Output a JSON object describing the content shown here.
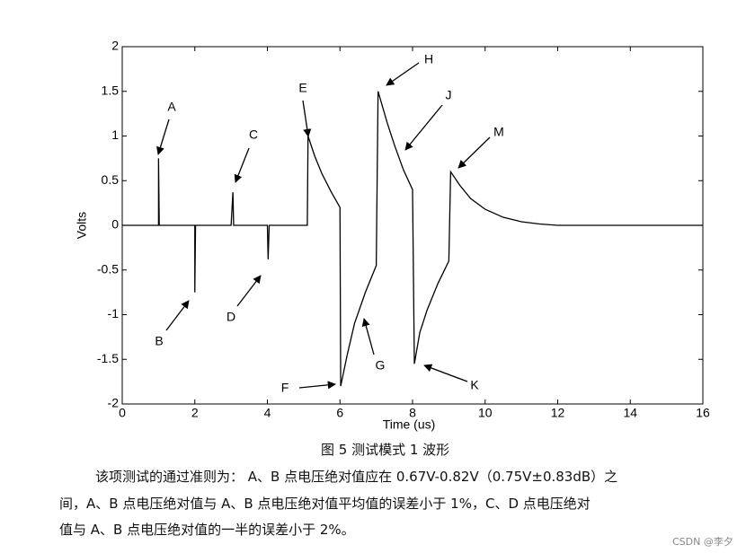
{
  "chart_data": {
    "type": "line",
    "xlabel": "Time (us)",
    "ylabel": "Volts",
    "x": [
      0,
      1,
      1,
      1.02,
      2,
      2,
      2.02,
      3,
      3.05,
      3.07,
      4,
      4.02,
      4.05,
      5.1,
      5.12,
      5.3,
      5.5,
      5.75,
      6.0,
      6.02,
      6.2,
      6.4,
      6.7,
      7.0,
      7.05,
      7.3,
      7.5,
      7.75,
      8.0,
      8.05,
      8.2,
      8.4,
      8.7,
      9.0,
      9.05,
      9.3,
      9.6,
      10,
      10.5,
      11,
      11.5,
      12,
      16
    ],
    "values": [
      0,
      0,
      0.75,
      0,
      0,
      -0.75,
      0,
      0,
      0.37,
      0,
      0,
      -0.38,
      0,
      0,
      1.0,
      0.78,
      0.58,
      0.38,
      0.2,
      -1.8,
      -1.45,
      -1.1,
      -0.75,
      -0.45,
      1.5,
      1.15,
      0.9,
      0.62,
      0.4,
      -1.55,
      -1.2,
      -0.95,
      -0.65,
      -0.4,
      0.6,
      0.45,
      0.3,
      0.18,
      0.09,
      0.04,
      0.015,
      0,
      0
    ],
    "color": "#000000",
    "xlim": [
      0,
      16
    ],
    "xticks": [
      0,
      2,
      4,
      6,
      8,
      10,
      12,
      14,
      16
    ],
    "ylim": [
      -2,
      2
    ],
    "yticks": [
      -2,
      -1.5,
      -1,
      -0.5,
      0,
      0.5,
      1,
      1.5,
      2
    ],
    "grid": false,
    "annotations": [
      "A",
      "B",
      "C",
      "D",
      "E",
      "F",
      "G",
      "H",
      "J",
      "K",
      "M"
    ]
  },
  "caption": "图 5 测试模式 1 波形",
  "paragraph": [
    "该项测试的通过准则为： A、B 点电压绝对值应在 0.67V-0.82V（0.75V±0.83dB）之",
    "间，A、B 点电压绝对值与 A、B 点电压绝对值平均值的误差小于 1%，C、D 点电压绝对",
    "值与 A、B 点电压绝对值的一半的误差小于 2%。"
  ],
  "watermark": "CSDN @李夕"
}
